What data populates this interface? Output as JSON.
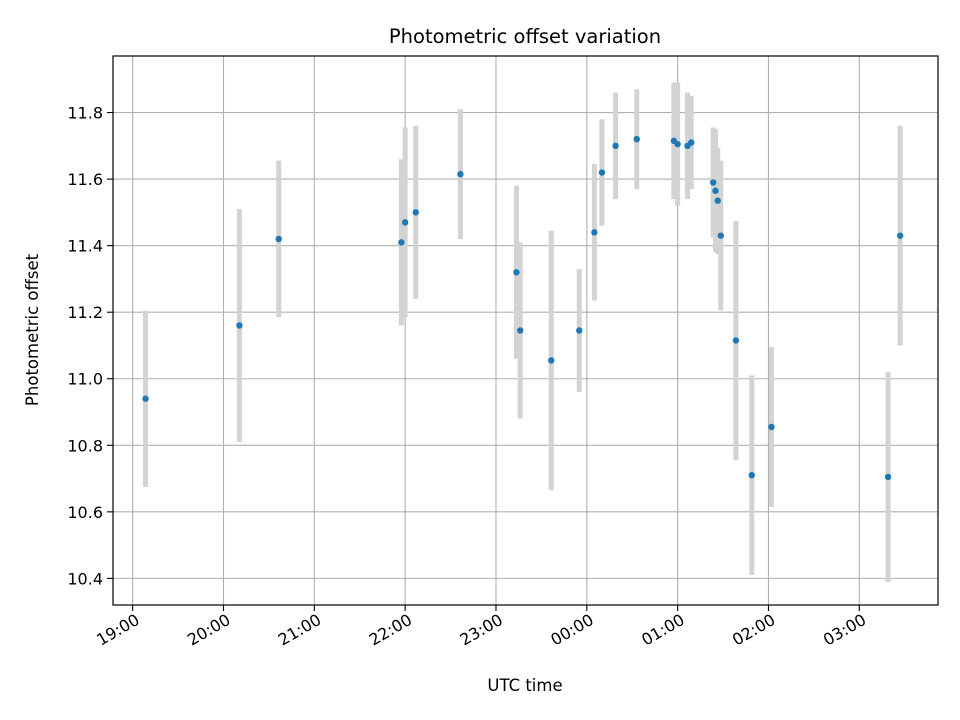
{
  "chart_data": {
    "type": "scatter",
    "title": "Photometric offset variation",
    "xlabel": "UTC time",
    "ylabel": "Photometric offset",
    "x_axis": {
      "type": "time",
      "range": [
        "2024-01-01T18:47:00",
        "2024-01-02T03:52:00"
      ],
      "tick_values": [
        "2024-01-01T19:00:00",
        "2024-01-01T20:00:00",
        "2024-01-01T21:00:00",
        "2024-01-01T22:00:00",
        "2024-01-01T23:00:00",
        "2024-01-02T00:00:00",
        "2024-01-02T01:00:00",
        "2024-01-02T02:00:00",
        "2024-01-02T03:00:00"
      ],
      "tick_labels": [
        "19:00",
        "20:00",
        "21:00",
        "22:00",
        "23:00",
        "00:00",
        "01:00",
        "02:00",
        "03:00"
      ]
    },
    "y_axis": {
      "range": [
        10.32,
        11.97
      ],
      "ticks": [
        10.4,
        10.6,
        10.8,
        11.0,
        11.2,
        11.4,
        11.6,
        11.8
      ],
      "tick_labels": [
        "10.4",
        "10.6",
        "10.8",
        "11.0",
        "11.2",
        "11.4",
        "11.6",
        "11.8"
      ]
    },
    "grid": true,
    "colors": {
      "marker": "#1f77b4",
      "errorbar": "#d3d3d3",
      "grid": "#b0b0b0"
    },
    "points": [
      {
        "x": "2024-01-01T19:08:30",
        "y": 10.94,
        "err": 0.265
      },
      {
        "x": "2024-01-01T20:10:30",
        "y": 11.16,
        "err": 0.35
      },
      {
        "x": "2024-01-01T20:36:30",
        "y": 11.42,
        "err": 0.235
      },
      {
        "x": "2024-01-01T21:57:30",
        "y": 11.41,
        "err": 0.25
      },
      {
        "x": "2024-01-01T22:00:00",
        "y": 11.47,
        "err": 0.285
      },
      {
        "x": "2024-01-01T22:07:00",
        "y": 11.5,
        "err": 0.26
      },
      {
        "x": "2024-01-01T22:36:30",
        "y": 11.615,
        "err": 0.195
      },
      {
        "x": "2024-01-01T23:13:30",
        "y": 11.32,
        "err": 0.26
      },
      {
        "x": "2024-01-01T23:16:00",
        "y": 11.145,
        "err": 0.265
      },
      {
        "x": "2024-01-01T23:36:30",
        "y": 11.055,
        "err": 0.39
      },
      {
        "x": "2024-01-01T23:55:00",
        "y": 11.145,
        "err": 0.185
      },
      {
        "x": "2024-01-02T00:05:00",
        "y": 11.44,
        "err": 0.205
      },
      {
        "x": "2024-01-02T00:10:00",
        "y": 11.62,
        "err": 0.16
      },
      {
        "x": "2024-01-02T00:19:00",
        "y": 11.7,
        "err": 0.16
      },
      {
        "x": "2024-01-02T00:33:00",
        "y": 11.72,
        "err": 0.15
      },
      {
        "x": "2024-01-02T00:57:30",
        "y": 11.715,
        "err": 0.175
      },
      {
        "x": "2024-01-02T01:00:00",
        "y": 11.705,
        "err": 0.185
      },
      {
        "x": "2024-01-02T01:06:30",
        "y": 11.7,
        "err": 0.16
      },
      {
        "x": "2024-01-02T01:09:00",
        "y": 11.71,
        "err": 0.14
      },
      {
        "x": "2024-01-02T01:23:30",
        "y": 11.59,
        "err": 0.165
      },
      {
        "x": "2024-01-02T01:25:00",
        "y": 11.565,
        "err": 0.185
      },
      {
        "x": "2024-01-02T01:26:30",
        "y": 11.535,
        "err": 0.16
      },
      {
        "x": "2024-01-02T01:28:30",
        "y": 11.43,
        "err": 0.225
      },
      {
        "x": "2024-01-02T01:38:30",
        "y": 11.115,
        "err": 0.36
      },
      {
        "x": "2024-01-02T01:49:00",
        "y": 10.71,
        "err": 0.3
      },
      {
        "x": "2024-01-02T02:02:00",
        "y": 10.855,
        "err": 0.24
      },
      {
        "x": "2024-01-02T03:19:00",
        "y": 10.705,
        "err": 0.315
      },
      {
        "x": "2024-01-02T03:27:00",
        "y": 11.43,
        "err": 0.33
      }
    ]
  }
}
